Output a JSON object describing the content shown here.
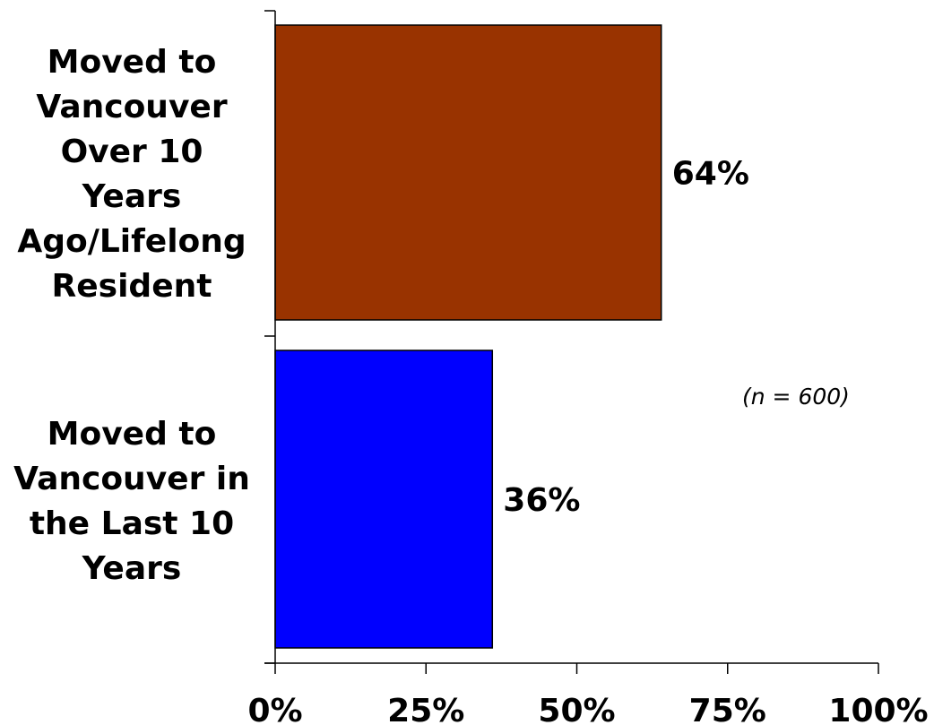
{
  "chart_data": {
    "type": "bar",
    "orientation": "horizontal",
    "categories": [
      "Moved to\nVancouver\nOver 10\nYears\nAgo/Lifelong\nResident",
      "Moved to\nVancouver in\nthe Last 10\nYears"
    ],
    "values": [
      64,
      36
    ],
    "data_labels": [
      "64%",
      "36%"
    ],
    "bar_colors": [
      "#993300",
      "#0000ff"
    ],
    "xlim": [
      0,
      100
    ],
    "x_ticks": [
      0,
      25,
      50,
      75,
      100
    ],
    "x_tick_labels": [
      "0%",
      "25%",
      "50%",
      "75%",
      "100%"
    ],
    "grid": false,
    "legend": "none",
    "annotation": "(n = 600)"
  }
}
